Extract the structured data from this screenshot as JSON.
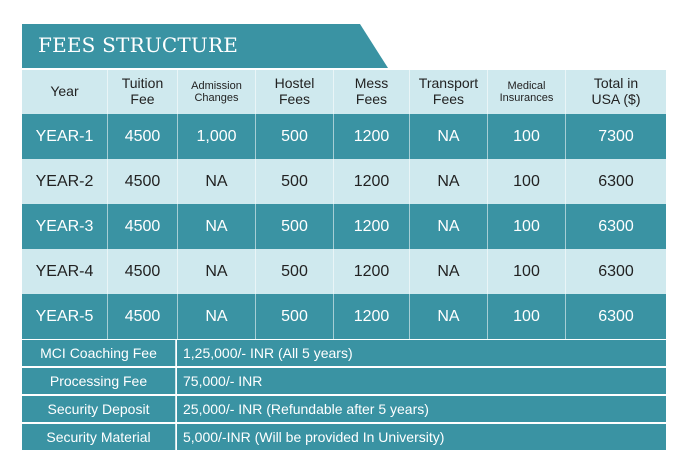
{
  "title": "FEES STRUCTURE",
  "headers": [
    {
      "text": "Year",
      "small": false
    },
    {
      "text": "Tuition\nFee",
      "small": false
    },
    {
      "text": "Admission\nChanges",
      "small": true
    },
    {
      "text": "Hostel\nFees",
      "small": false
    },
    {
      "text": "Mess\nFees",
      "small": false
    },
    {
      "text": "Transport\nFees",
      "small": false
    },
    {
      "text": "Medical\nInsurances",
      "small": true
    },
    {
      "text": "Total in\nUSA ($)",
      "small": false
    }
  ],
  "rows": [
    [
      "YEAR-1",
      "4500",
      "1,000",
      "500",
      "1200",
      "NA",
      "100",
      "7300"
    ],
    [
      "YEAR-2",
      "4500",
      "NA",
      "500",
      "1200",
      "NA",
      "100",
      "6300"
    ],
    [
      "YEAR-3",
      "4500",
      "NA",
      "500",
      "1200",
      "NA",
      "100",
      "6300"
    ],
    [
      "YEAR-4",
      "4500",
      "NA",
      "500",
      "1200",
      "NA",
      "100",
      "6300"
    ],
    [
      "YEAR-5",
      "4500",
      "NA",
      "500",
      "1200",
      "NA",
      "100",
      "6300"
    ]
  ],
  "extras": [
    {
      "label": "MCI Coaching Fee",
      "value": "1,25,000/- INR (All 5 years)"
    },
    {
      "label": "Processing Fee",
      "value": "75,000/- INR"
    },
    {
      "label": "Security Deposit",
      "value": "25,000/- INR (Refundable after 5 years)"
    },
    {
      "label": "Security Material",
      "value": "5,000/-INR (Will be provided In University)"
    }
  ]
}
